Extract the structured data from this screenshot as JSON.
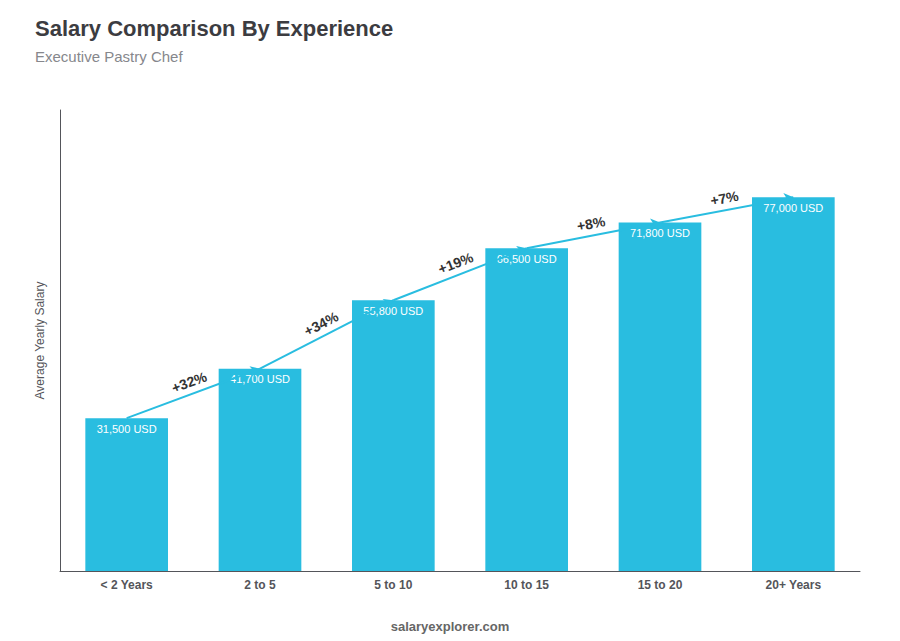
{
  "chart_data": {
    "type": "bar",
    "title": "Salary Comparison By Experience",
    "subtitle": "Executive Pastry Chef",
    "ylabel": "Average Yearly Salary",
    "categories": [
      "< 2 Years",
      "2 to 5",
      "5 to 10",
      "10 to 15",
      "15 to 20",
      "20+ Years"
    ],
    "values": [
      31500,
      41700,
      55800,
      66500,
      71800,
      77000
    ],
    "value_labels": [
      "31,500 USD",
      "41,700 USD",
      "55,800 USD",
      "66,500 USD",
      "71,800 USD",
      "77,000 USD"
    ],
    "data_labels": true,
    "color": "#29bde0",
    "ylim": [
      0,
      95000
    ],
    "grid": false,
    "tick_labels": "x",
    "annotations": [
      {
        "text": "+32%",
        "from": "< 2 Years",
        "to": "2 to 5"
      },
      {
        "text": "+34%",
        "from": "2 to 5",
        "to": "5 to 10"
      },
      {
        "text": "+19%",
        "from": "5 to 10",
        "to": "10 to 15"
      },
      {
        "text": "+8%",
        "from": "10 to 15",
        "to": "15 to 20"
      },
      {
        "text": "+7%",
        "from": "15 to 20",
        "to": "20+ Years"
      },
      {
        "text": "salaryexplorer.com"
      }
    ]
  }
}
